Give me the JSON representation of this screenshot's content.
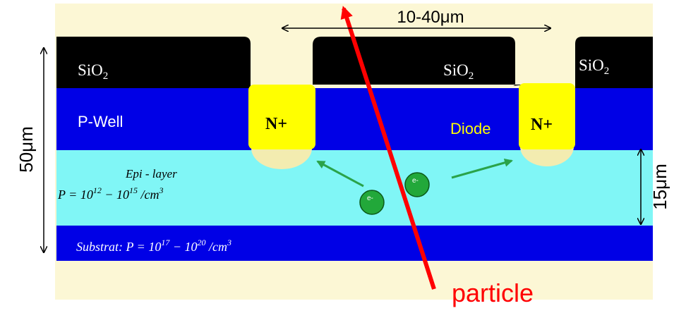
{
  "sio2_labels": [
    {
      "text": "SiO",
      "subscript": "2"
    },
    {
      "text": "SiO",
      "subscript": "2"
    },
    {
      "text": "SiO",
      "subscript": "2"
    }
  ],
  "p_well": "P-Well",
  "n_plus": [
    "N+",
    "N+"
  ],
  "diode": "Diode",
  "epi_layer": {
    "name": "Epi - layer",
    "equation": {
      "lhs": "P = 10",
      "exp1": "12",
      "mid": " − 10",
      "exp2": "15",
      "unit": " /cm",
      "exp3": "3"
    }
  },
  "substrate": {
    "name": "Substrat",
    "equation": {
      "lhs": ": P = 10",
      "exp1": "17",
      "mid": " − 10",
      "exp2": "20",
      "unit": " /cm",
      "exp3": "3"
    }
  },
  "electrons": [
    "e-",
    "e-"
  ],
  "dimensions": {
    "pitch": "10-40μm",
    "depth": "50μm",
    "epi_thickness": "15μm"
  },
  "particle": "particle"
}
